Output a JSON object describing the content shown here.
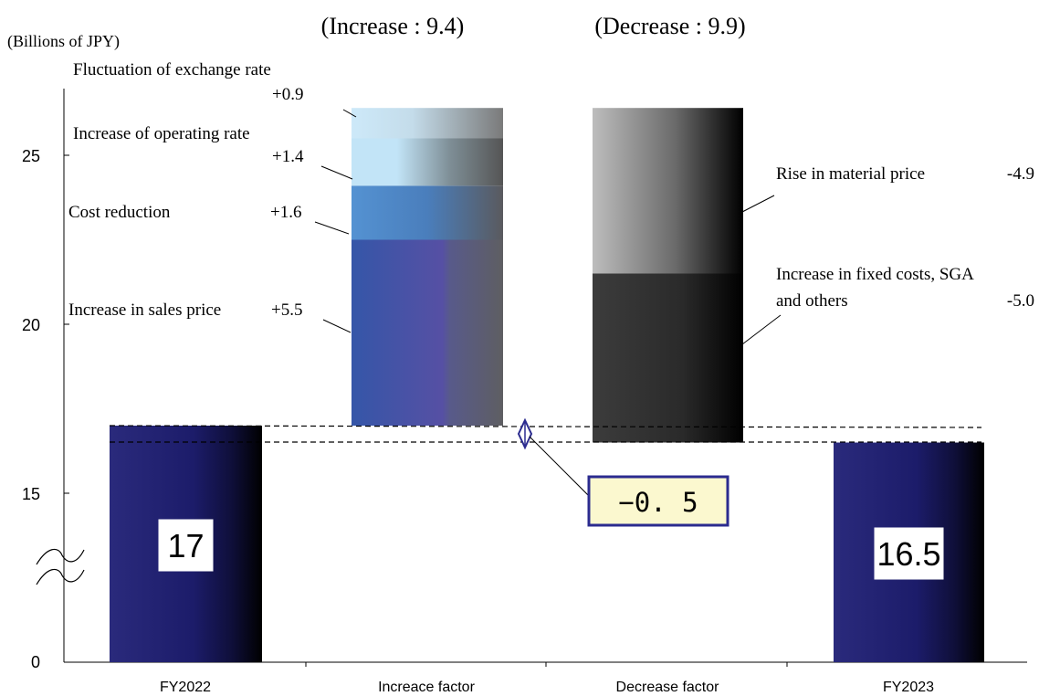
{
  "chart_data": {
    "type": "bar",
    "subtype": "waterfall",
    "ylabel": "(Billions of JPY)",
    "ylim": [
      0,
      27
    ],
    "yticks": [
      "0",
      "15",
      "20",
      "25"
    ],
    "axis_break": true,
    "grid": false,
    "categories": [
      "FY2022",
      "Increace factor",
      "Decrease factor",
      "FY2023"
    ],
    "headers": {
      "increase": "(Increase : 9.4)",
      "decrease": "(Decrease : 9.9)"
    },
    "totals": [
      {
        "category": "FY2022",
        "value": 17,
        "label": "17"
      },
      {
        "category": "FY2023",
        "value": 16.5,
        "label": "16.5"
      }
    ],
    "increase_segments": [
      {
        "name": "Increase in sales price",
        "value": 5.5,
        "label": "+5.5"
      },
      {
        "name": "Cost reduction",
        "value": 1.6,
        "label": "+1.6"
      },
      {
        "name": "Increase of operating rate",
        "value": 1.4,
        "label": "+1.4"
      },
      {
        "name": "Fluctuation of exchange rate",
        "value": 0.9,
        "label": "+0.9"
      }
    ],
    "decrease_segments": [
      {
        "name": "Rise in material price",
        "value": -4.9,
        "label": "-4.9"
      },
      {
        "name": "Increase in fixed costs, SGA and others",
        "value": -5.0,
        "label": "-5.0"
      }
    ],
    "net_change": {
      "value": -0.5,
      "label": "−0. 5"
    },
    "colors": {
      "total_bar": "#1a1a6e",
      "sales_price": "#3a4fa8",
      "cost_reduction": "#4a86c8",
      "operating_rate": "#bfe3f6",
      "exchange_rate": "#cfe9f8",
      "material_price": "#999999",
      "fixed_costs": "#333333",
      "net_box_fill": "#fbf8cf",
      "net_box_border": "#2b2b8f"
    }
  }
}
